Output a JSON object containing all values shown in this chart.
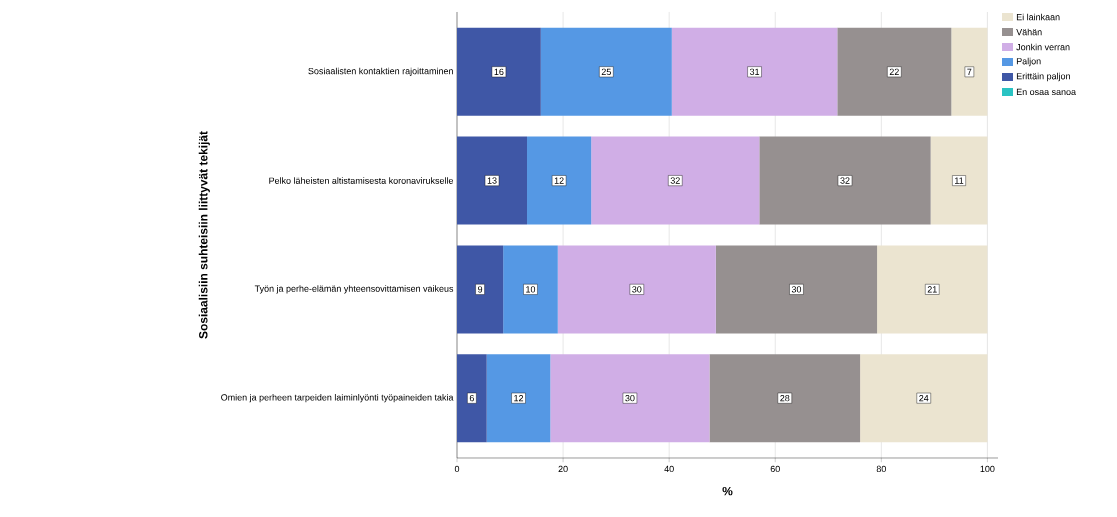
{
  "chart_data": {
    "type": "bar",
    "orientation": "horizontal",
    "stacked": true,
    "xlabel": "%",
    "ylabel": "Sosiaalisiin suhteisiin liittyvät tekijät",
    "categories": [
      "Sosiaalisten kontaktien rajoittaminen",
      "Pelko läheisten altistamisesta koronavirukselle",
      "Työn ja perhe-elämän yhteensovittamisen vaikeus",
      "Omien ja perheen tarpeiden laiminlyönti työpaineiden takia"
    ],
    "series": [
      {
        "name": "En osaa sanoa",
        "color": "#2ac3c3",
        "values": [
          null,
          null,
          null,
          null
        ]
      },
      {
        "name": "Erittäin paljon",
        "color": "#3f57a6",
        "values": [
          15.8,
          13.2,
          8.7,
          5.6
        ],
        "value_labels": [
          "16",
          "13",
          "9",
          "6"
        ]
      },
      {
        "name": "Paljon",
        "color": "#5598e4",
        "values": [
          24.7,
          12.1,
          10.3,
          12.0
        ],
        "value_labels": [
          "25",
          "12",
          "10",
          "12"
        ]
      },
      {
        "name": "Jonkin verran",
        "color": "#d0aee6",
        "values": [
          31.2,
          31.7,
          29.8,
          30.0
        ],
        "value_labels": [
          "31",
          "32",
          "30",
          "30"
        ]
      },
      {
        "name": "Vähän",
        "color": "#969090",
        "values": [
          21.5,
          32.3,
          30.4,
          28.4
        ],
        "value_labels": [
          "22",
          "32",
          "30",
          "28"
        ]
      },
      {
        "name": "Ei lainkaan",
        "color": "#ebe4d0",
        "values": [
          6.8,
          10.7,
          20.8,
          24.0
        ],
        "value_labels": [
          "7",
          "11",
          "21",
          "24"
        ]
      }
    ],
    "xlim": [
      0,
      102
    ],
    "xticks": [
      0,
      20,
      40,
      60,
      80,
      100
    ],
    "grid": "x",
    "legend": "top right"
  }
}
